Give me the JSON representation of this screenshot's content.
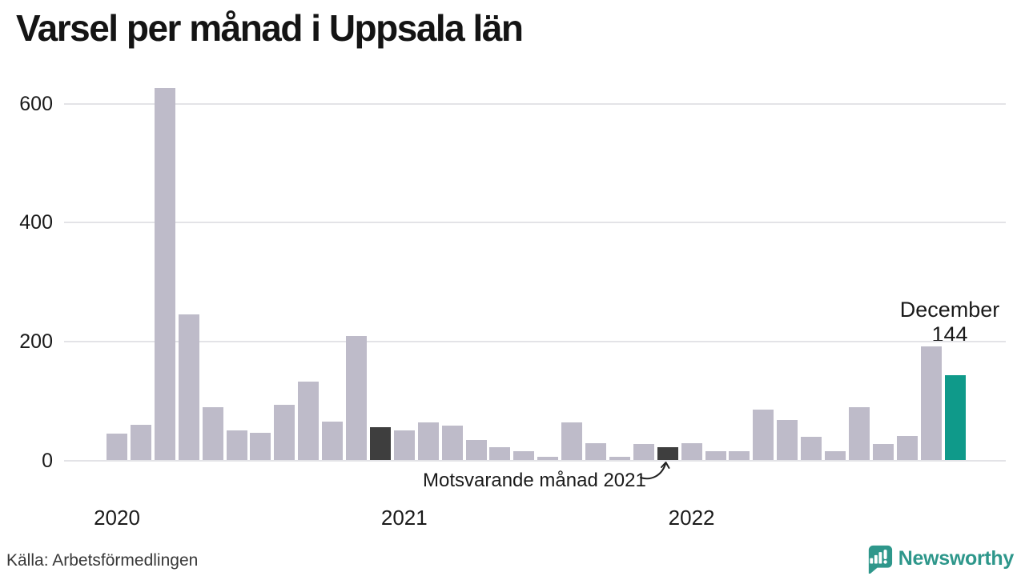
{
  "title": "Varsel per månad i Uppsala län",
  "source": "Källa: Arbetsförmedlingen",
  "logo": {
    "text": "Newsworthy"
  },
  "annotations": {
    "current": {
      "line1": "December",
      "line2": "144"
    },
    "comparison": "Motsvarande månad 2021"
  },
  "colors": {
    "bar_default": "#bebbc9",
    "bar_dark": "#3e3e3e",
    "bar_current": "#0f9a8a",
    "grid": "#e3e3e7",
    "logo_teal": "#2e978b"
  },
  "chart_data": {
    "type": "bar",
    "title": "Varsel per månad i Uppsala län",
    "xlabel": "",
    "ylabel": "",
    "ylim": [
      0,
      640
    ],
    "yticks": [
      0,
      200,
      400,
      600
    ],
    "grid": "horizontal",
    "months": [
      "2020-01",
      "2020-02",
      "2020-03",
      "2020-04",
      "2020-05",
      "2020-06",
      "2020-07",
      "2020-08",
      "2020-09",
      "2020-10",
      "2020-11",
      "2020-12",
      "2021-01",
      "2021-02",
      "2021-03",
      "2021-04",
      "2021-05",
      "2021-06",
      "2021-07",
      "2021-08",
      "2021-09",
      "2021-10",
      "2021-11",
      "2021-12",
      "2022-01",
      "2022-02",
      "2022-03",
      "2022-04",
      "2022-05",
      "2022-06",
      "2022-07",
      "2022-08",
      "2022-09",
      "2022-10",
      "2022-11",
      "2022-12"
    ],
    "values": [
      45,
      60,
      627,
      246,
      90,
      51,
      46,
      93,
      133,
      65,
      209,
      56,
      50,
      64,
      59,
      34,
      22,
      15,
      6,
      64,
      29,
      6,
      27,
      22,
      29,
      15,
      15,
      85,
      68,
      40,
      16,
      90,
      28,
      41,
      192,
      144
    ],
    "x_year_labels": [
      {
        "label": "2020",
        "month_index": 0
      },
      {
        "label": "2021",
        "month_index": 12
      },
      {
        "label": "2022",
        "month_index": 24
      }
    ],
    "highlight_dark_indices": [
      11,
      23
    ],
    "highlight_current_index": 35,
    "annotation_target_index": 23,
    "current_point": {
      "label": "December",
      "value": 144
    }
  }
}
